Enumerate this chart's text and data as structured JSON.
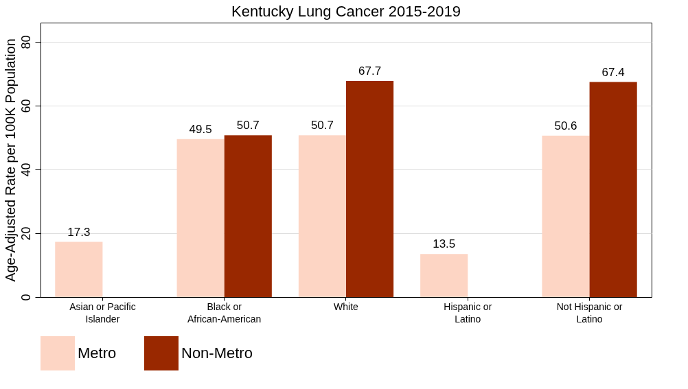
{
  "chart_data": {
    "type": "bar",
    "title": "Kentucky Lung Cancer 2015-2019",
    "ylabel": "Age-Adjusted Rate per 100K Population",
    "categories": [
      "Asian or Pacific\nIslander",
      "Black or\nAfrican-American",
      "White",
      "Hispanic or\nLatino",
      "Not Hispanic or\nLatino"
    ],
    "series": [
      {
        "name": "Metro",
        "color": "#fdd5c4",
        "values": [
          17.3,
          49.5,
          50.7,
          13.5,
          50.6
        ]
      },
      {
        "name": "Non-Metro",
        "color": "#992800",
        "values": [
          null,
          50.7,
          67.7,
          null,
          67.4
        ]
      }
    ],
    "ylim": [
      0,
      86
    ],
    "yticks": [
      0,
      20,
      40,
      60,
      80
    ],
    "grid": "y",
    "legend": "bottom",
    "data_labels": true
  }
}
